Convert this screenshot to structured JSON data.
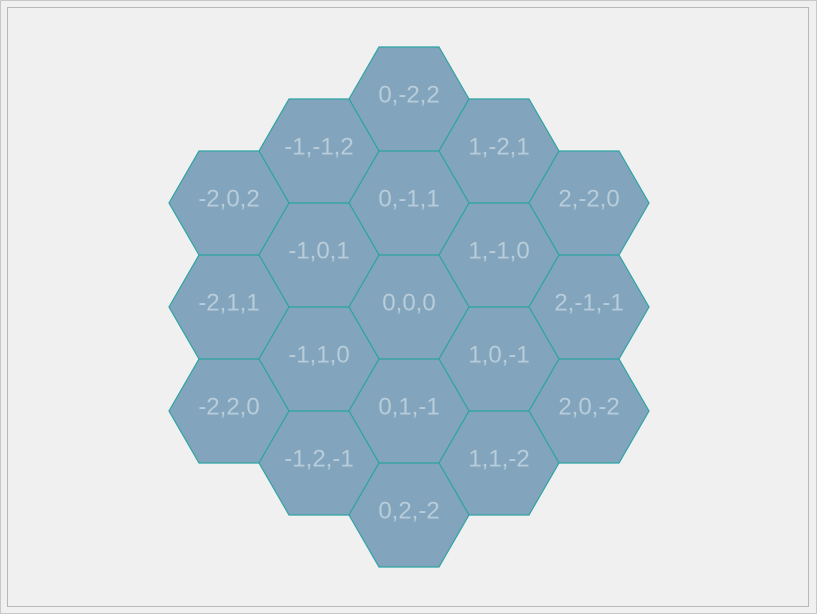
{
  "grid": {
    "colors": {
      "fill": "#82a5bd",
      "stroke": "#2fa3a3",
      "label": "#b8ccda",
      "background": "#f0f0f0"
    },
    "hexes": [
      {
        "q": 0,
        "r": -2,
        "s": 2,
        "label": "0,-2,2"
      },
      {
        "q": -1,
        "r": -1,
        "s": 2,
        "label": "-1,-1,2"
      },
      {
        "q": 1,
        "r": -2,
        "s": 1,
        "label": "1,-2,1"
      },
      {
        "q": -2,
        "r": 0,
        "s": 2,
        "label": "-2,0,2"
      },
      {
        "q": 0,
        "r": -1,
        "s": 1,
        "label": "0,-1,1"
      },
      {
        "q": 2,
        "r": -2,
        "s": 0,
        "label": "2,-2,0"
      },
      {
        "q": -1,
        "r": 0,
        "s": 1,
        "label": "-1,0,1"
      },
      {
        "q": 1,
        "r": -1,
        "s": 0,
        "label": "1,-1,0"
      },
      {
        "q": -2,
        "r": 1,
        "s": 1,
        "label": "-2,1,1"
      },
      {
        "q": 0,
        "r": 0,
        "s": 0,
        "label": "0,0,0"
      },
      {
        "q": 2,
        "r": -1,
        "s": -1,
        "label": "2,-1,-1"
      },
      {
        "q": -1,
        "r": 1,
        "s": 0,
        "label": "-1,1,0"
      },
      {
        "q": 1,
        "r": 0,
        "s": -1,
        "label": "1,0,-1"
      },
      {
        "q": -2,
        "r": 2,
        "s": 0,
        "label": "-2,2,0"
      },
      {
        "q": 0,
        "r": 1,
        "s": -1,
        "label": "0,1,-1"
      },
      {
        "q": 2,
        "r": 0,
        "s": -2,
        "label": "2,0,-2"
      },
      {
        "q": -1,
        "r": 2,
        "s": -1,
        "label": "-1,2,-1"
      },
      {
        "q": 1,
        "r": 1,
        "s": -2,
        "label": "1,1,-2"
      },
      {
        "q": 0,
        "r": 2,
        "s": -2,
        "label": "0,2,-2"
      }
    ]
  }
}
